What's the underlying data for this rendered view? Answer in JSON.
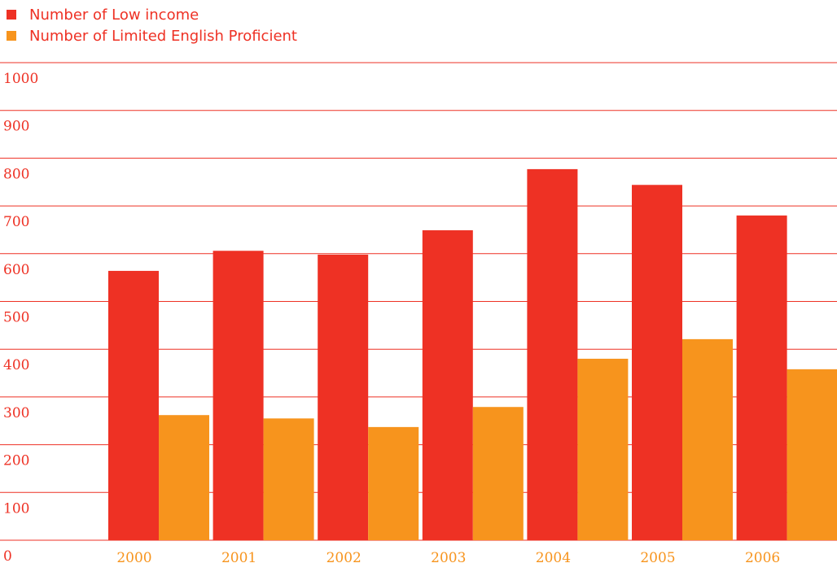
{
  "colors": {
    "low_income": "#ee3124",
    "lep": "#f7941d",
    "grid": "#ee3124",
    "y_tick_text": "#ee3124",
    "x_tick_text": "#f7941d",
    "legend_text": "#ee3124"
  },
  "chart_data": {
    "type": "bar",
    "title": "",
    "xlabel": "",
    "ylabel": "",
    "ylim": [
      0,
      1000
    ],
    "y_ticks": [
      "0",
      "100",
      "200",
      "300",
      "400",
      "500",
      "600",
      "700",
      "800",
      "900",
      "1000"
    ],
    "categories": [
      "2000",
      "2001",
      "2002",
      "2003",
      "2004",
      "2005",
      "2006"
    ],
    "series": [
      {
        "name": "Number of Low income",
        "values": [
          564,
          606,
          598,
          649,
          777,
          744,
          680
        ]
      },
      {
        "name": "Number of Limited English Proficient",
        "values": [
          262,
          255,
          237,
          279,
          380,
          421,
          358
        ]
      }
    ],
    "grid": true,
    "legend_position": "top-left"
  }
}
